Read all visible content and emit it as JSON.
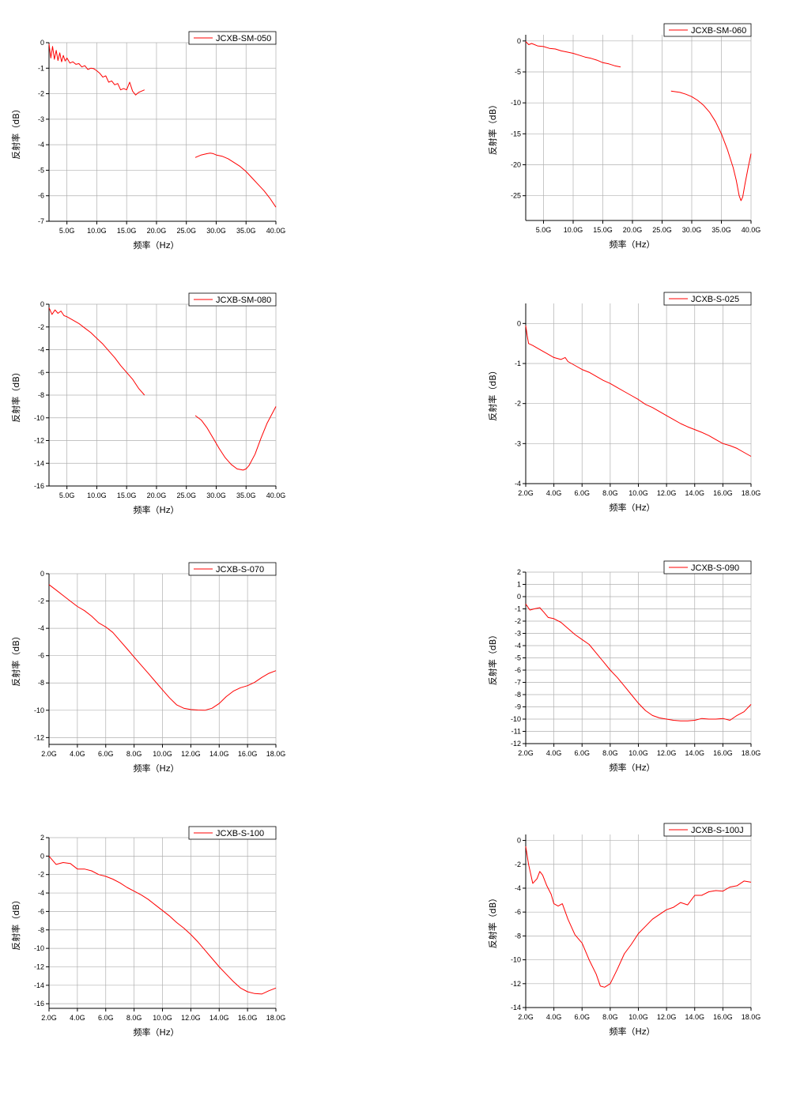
{
  "style": {
    "line_color": "#ff0000",
    "grid_color": "#b0b0b0",
    "axis_color": "#000000"
  },
  "chart_data": [
    {
      "type": "line",
      "legend": "JCXB-SM-050",
      "legend_position": "top-right",
      "xlabel": "频率（Hz）",
      "ylabel": "反射率（dB）",
      "xlim": [
        2,
        40
      ],
      "ylim": [
        -7,
        0
      ],
      "grid": true,
      "xticks": [
        5,
        10,
        15,
        20,
        25,
        30,
        35,
        40
      ],
      "xtick_labels": [
        "5.0G",
        "10.0G",
        "15.0G",
        "20.0G",
        "25.0G",
        "30.0G",
        "35.0G",
        "40.0G"
      ],
      "yticks": [
        0,
        -1,
        -2,
        -3,
        -4,
        -5,
        -6,
        -7
      ],
      "ytick_labels": [
        "0",
        "-1",
        "-2",
        "-3",
        "-4",
        "-5",
        "-6",
        "-7"
      ],
      "series": [
        {
          "x": [
            2.0,
            2.3,
            2.6,
            2.9,
            3.2,
            3.5,
            3.8,
            4.1,
            4.4,
            4.7,
            5.0,
            5.5,
            6.0,
            6.5,
            7.0,
            7.5,
            8.0,
            8.5,
            9.0,
            9.5,
            10.0,
            10.5,
            11.0,
            11.5,
            12.0,
            12.5,
            13.0,
            13.5,
            14.0,
            14.5,
            15.0,
            15.5,
            16.0,
            16.5,
            17.0,
            17.5,
            18.0
          ],
          "y": [
            -0.05,
            -0.6,
            -0.15,
            -0.65,
            -0.3,
            -0.7,
            -0.4,
            -0.75,
            -0.5,
            -0.72,
            -0.6,
            -0.8,
            -0.75,
            -0.85,
            -0.82,
            -0.95,
            -0.9,
            -1.05,
            -1.0,
            -1.02,
            -1.1,
            -1.2,
            -1.35,
            -1.3,
            -1.55,
            -1.5,
            -1.65,
            -1.6,
            -1.85,
            -1.8,
            -1.85,
            -1.55,
            -1.9,
            -2.05,
            -1.95,
            -1.9,
            -1.85
          ]
        },
        {
          "x": [
            26.5,
            27.5,
            28.5,
            29.0,
            29.5,
            30.0,
            31.0,
            32.0,
            33.0,
            34.0,
            35.0,
            36.0,
            37.0,
            38.0,
            39.0,
            40.0
          ],
          "y": [
            -4.5,
            -4.4,
            -4.35,
            -4.33,
            -4.35,
            -4.4,
            -4.45,
            -4.55,
            -4.7,
            -4.85,
            -5.05,
            -5.3,
            -5.55,
            -5.8,
            -6.1,
            -6.45
          ]
        }
      ]
    },
    {
      "type": "line",
      "legend": "JCXB-SM-060",
      "legend_position": "top-right",
      "xlabel": "频率（Hz）",
      "ylabel": "反射率（dB）",
      "xlim": [
        2,
        40
      ],
      "ylim": [
        -29,
        1
      ],
      "grid": true,
      "xticks": [
        5,
        10,
        15,
        20,
        25,
        30,
        35,
        40
      ],
      "xtick_labels": [
        "5.0G",
        "10.0G",
        "15.0G",
        "20.0G",
        "25.0G",
        "30.0G",
        "35.0G",
        "40.0G"
      ],
      "yticks": [
        0,
        -5,
        -10,
        -15,
        -20,
        -25
      ],
      "ytick_labels": [
        "0",
        "-5",
        "-10",
        "-15",
        "-20",
        "-25"
      ],
      "series": [
        {
          "x": [
            2.0,
            2.5,
            3.0,
            4.0,
            5.0,
            6.0,
            7.0,
            8.0,
            9.0,
            10.0,
            11.0,
            12.0,
            13.0,
            14.0,
            15.0,
            16.0,
            17.0,
            18.0
          ],
          "y": [
            -0.1,
            -0.6,
            -0.4,
            -0.8,
            -0.9,
            -1.2,
            -1.3,
            -1.6,
            -1.8,
            -2.0,
            -2.3,
            -2.6,
            -2.8,
            -3.1,
            -3.5,
            -3.7,
            -4.0,
            -4.2
          ]
        },
        {
          "x": [
            26.5,
            28.0,
            29.0,
            30.0,
            31.0,
            32.0,
            33.0,
            34.0,
            35.0,
            36.0,
            37.0,
            37.5,
            38.0,
            38.3,
            38.6,
            39.0,
            39.5,
            40.0
          ],
          "y": [
            -8.1,
            -8.3,
            -8.6,
            -9.0,
            -9.6,
            -10.4,
            -11.5,
            -13.0,
            -15.0,
            -17.5,
            -20.5,
            -22.5,
            -25.0,
            -25.8,
            -25.2,
            -23.0,
            -20.5,
            -18.2
          ]
        }
      ]
    },
    {
      "type": "line",
      "legend": "JCXB-SM-080",
      "legend_position": "top-right",
      "xlabel": "频率（Hz）",
      "ylabel": "反射率（dB）",
      "xlim": [
        2,
        40
      ],
      "ylim": [
        -16,
        0
      ],
      "grid": true,
      "xticks": [
        5,
        10,
        15,
        20,
        25,
        30,
        35,
        40
      ],
      "xtick_labels": [
        "5.0G",
        "10.0G",
        "15.0G",
        "20.0G",
        "25.0G",
        "30.0G",
        "35.0G",
        "40.0G"
      ],
      "yticks": [
        0,
        -2,
        -4,
        -6,
        -8,
        -10,
        -12,
        -14,
        -16
      ],
      "ytick_labels": [
        "0",
        "-2",
        "-4",
        "-6",
        "-8",
        "-10",
        "-12",
        "-14",
        "-16"
      ],
      "series": [
        {
          "x": [
            2.0,
            2.5,
            3.0,
            3.5,
            4.0,
            4.5,
            5.0,
            6.0,
            7.0,
            8.0,
            9.0,
            10.0,
            11.0,
            12.0,
            13.0,
            14.0,
            15.0,
            16.0,
            17.0,
            18.0
          ],
          "y": [
            -0.3,
            -0.9,
            -0.5,
            -0.8,
            -0.6,
            -1.0,
            -1.1,
            -1.4,
            -1.7,
            -2.1,
            -2.5,
            -3.0,
            -3.5,
            -4.1,
            -4.7,
            -5.4,
            -6.0,
            -6.6,
            -7.4,
            -8.0
          ]
        },
        {
          "x": [
            26.5,
            27.5,
            28.5,
            29.5,
            30.5,
            31.5,
            32.5,
            33.5,
            34.5,
            35.0,
            35.5,
            36.5,
            37.5,
            38.5,
            39.5,
            40.0
          ],
          "y": [
            -9.8,
            -10.2,
            -10.9,
            -11.8,
            -12.7,
            -13.5,
            -14.1,
            -14.5,
            -14.6,
            -14.5,
            -14.2,
            -13.2,
            -11.8,
            -10.5,
            -9.5,
            -9.0
          ]
        }
      ]
    },
    {
      "type": "line",
      "legend": "JCXB-S-025",
      "legend_position": "top-right",
      "xlabel": "频率（Hz）",
      "ylabel": "反射率（dB）",
      "xlim": [
        2,
        18
      ],
      "ylim": [
        -4,
        0.5
      ],
      "grid": true,
      "xticks": [
        2,
        4,
        6,
        8,
        10,
        12,
        14,
        16,
        18
      ],
      "xtick_labels": [
        "2.0G",
        "4.0G",
        "6.0G",
        "8.0G",
        "10.0G",
        "12.0G",
        "14.0G",
        "16.0G",
        "18.0G"
      ],
      "yticks": [
        0,
        -1,
        -2,
        -3,
        -4
      ],
      "ytick_labels": [
        "0",
        "-1",
        "-2",
        "-3",
        "-4"
      ],
      "series": [
        {
          "x": [
            2.0,
            2.1,
            2.2,
            2.5,
            3.0,
            3.5,
            4.0,
            4.5,
            4.8,
            5.0,
            5.5,
            6.0,
            6.5,
            7.0,
            7.5,
            8.0,
            8.5,
            9.0,
            9.5,
            10.0,
            10.5,
            11.0,
            11.5,
            12.0,
            12.5,
            13.0,
            13.5,
            14.0,
            14.5,
            15.0,
            15.5,
            16.0,
            16.5,
            17.0,
            17.5,
            18.0
          ],
          "y": [
            -0.05,
            -0.3,
            -0.5,
            -0.55,
            -0.65,
            -0.75,
            -0.85,
            -0.9,
            -0.85,
            -0.95,
            -1.05,
            -1.15,
            -1.22,
            -1.32,
            -1.42,
            -1.5,
            -1.6,
            -1.7,
            -1.8,
            -1.9,
            -2.02,
            -2.1,
            -2.2,
            -2.3,
            -2.4,
            -2.5,
            -2.58,
            -2.65,
            -2.72,
            -2.8,
            -2.9,
            -3.0,
            -3.05,
            -3.12,
            -3.22,
            -3.32
          ]
        }
      ]
    },
    {
      "type": "line",
      "legend": "JCXB-S-070",
      "legend_position": "top-right",
      "xlabel": "频率（Hz）",
      "ylabel": "反射率（dB）",
      "xlim": [
        2,
        18
      ],
      "ylim": [
        -12.5,
        0
      ],
      "grid": true,
      "xticks": [
        2,
        4,
        6,
        8,
        10,
        12,
        14,
        16,
        18
      ],
      "xtick_labels": [
        "2.0G",
        "4.0G",
        "6.0G",
        "8.0G",
        "10.0G",
        "12.0G",
        "14.0G",
        "16.0G",
        "18.0G"
      ],
      "yticks": [
        0,
        -2,
        -4,
        -6,
        -8,
        -10,
        -12
      ],
      "ytick_labels": [
        "0",
        "-2",
        "-4",
        "-6",
        "-8",
        "-10",
        "-12"
      ],
      "series": [
        {
          "x": [
            2.0,
            2.5,
            3.0,
            3.5,
            4.0,
            4.5,
            5.0,
            5.5,
            6.0,
            6.5,
            7.0,
            7.5,
            8.0,
            8.5,
            9.0,
            9.5,
            10.0,
            10.5,
            11.0,
            11.5,
            12.0,
            12.5,
            13.0,
            13.5,
            14.0,
            14.5,
            15.0,
            15.5,
            16.0,
            16.5,
            17.0,
            17.5,
            18.0
          ],
          "y": [
            -0.8,
            -1.2,
            -1.6,
            -2.0,
            -2.4,
            -2.7,
            -3.1,
            -3.6,
            -3.9,
            -4.3,
            -4.9,
            -5.5,
            -6.1,
            -6.7,
            -7.3,
            -7.9,
            -8.5,
            -9.1,
            -9.6,
            -9.85,
            -9.95,
            -9.98,
            -10.0,
            -9.85,
            -9.5,
            -9.0,
            -8.6,
            -8.35,
            -8.2,
            -7.95,
            -7.6,
            -7.3,
            -7.1
          ]
        }
      ]
    },
    {
      "type": "line",
      "legend": "JCXB-S-090",
      "legend_position": "top-right",
      "xlabel": "频率（Hz）",
      "ylabel": "反射率（dB）",
      "xlim": [
        2,
        18
      ],
      "ylim": [
        -12,
        2
      ],
      "grid": true,
      "xticks": [
        2,
        4,
        6,
        8,
        10,
        12,
        14,
        16,
        18
      ],
      "xtick_labels": [
        "2.0G",
        "4.0G",
        "6.0G",
        "8.0G",
        "10.0G",
        "12.0G",
        "14.0G",
        "16.0G",
        "18.0G"
      ],
      "yticks": [
        2,
        1,
        0,
        -1,
        -2,
        -3,
        -4,
        -5,
        -6,
        -7,
        -8,
        -9,
        -10,
        -11,
        -12
      ],
      "ytick_labels": [
        "2",
        "1",
        "0",
        "-1",
        "-2",
        "-3",
        "-4",
        "-5",
        "-6",
        "-7",
        "-8",
        "-9",
        "-10",
        "-11",
        "-12"
      ],
      "series": [
        {
          "x": [
            2.0,
            2.3,
            2.6,
            3.0,
            3.3,
            3.6,
            4.0,
            4.5,
            5.0,
            5.5,
            6.0,
            6.5,
            7.0,
            7.5,
            8.0,
            8.5,
            9.0,
            9.5,
            10.0,
            10.5,
            11.0,
            11.5,
            12.0,
            12.5,
            13.0,
            13.5,
            14.0,
            14.5,
            15.0,
            15.5,
            16.0,
            16.5,
            17.0,
            17.5,
            18.0
          ],
          "y": [
            -0.6,
            -1.1,
            -1.0,
            -0.9,
            -1.3,
            -1.7,
            -1.8,
            -2.1,
            -2.6,
            -3.1,
            -3.5,
            -3.9,
            -4.6,
            -5.3,
            -6.0,
            -6.6,
            -7.3,
            -8.0,
            -8.7,
            -9.3,
            -9.7,
            -9.9,
            -10.0,
            -10.1,
            -10.15,
            -10.15,
            -10.1,
            -9.95,
            -10.0,
            -10.0,
            -9.95,
            -10.1,
            -9.7,
            -9.4,
            -8.8
          ]
        }
      ]
    },
    {
      "type": "line",
      "legend": "JCXB-S-100",
      "legend_position": "top-right",
      "xlabel": "频率（Hz）",
      "ylabel": "反射率（dB）",
      "xlim": [
        2,
        18
      ],
      "ylim": [
        -16.5,
        2
      ],
      "grid": true,
      "xticks": [
        2,
        4,
        6,
        8,
        10,
        12,
        14,
        16,
        18
      ],
      "xtick_labels": [
        "2.0G",
        "4.0G",
        "6.0G",
        "8.0G",
        "10.0G",
        "12.0G",
        "14.0G",
        "16.0G",
        "18.0G"
      ],
      "yticks": [
        2,
        0,
        -2,
        -4,
        -6,
        -8,
        -10,
        -12,
        -14,
        -16
      ],
      "ytick_labels": [
        "2",
        "0",
        "-2",
        "-4",
        "-6",
        "-8",
        "-10",
        "-12",
        "-14",
        "-16"
      ],
      "series": [
        {
          "x": [
            2.0,
            2.5,
            3.0,
            3.5,
            4.0,
            4.5,
            5.0,
            5.5,
            6.0,
            6.5,
            7.0,
            7.5,
            8.0,
            8.5,
            9.0,
            9.5,
            10.0,
            10.5,
            11.0,
            11.5,
            12.0,
            12.5,
            13.0,
            13.5,
            14.0,
            14.5,
            15.0,
            15.5,
            16.0,
            16.5,
            17.0,
            17.5,
            18.0
          ],
          "y": [
            0.0,
            -0.9,
            -0.7,
            -0.8,
            -1.4,
            -1.4,
            -1.6,
            -2.0,
            -2.2,
            -2.5,
            -2.9,
            -3.4,
            -3.8,
            -4.2,
            -4.7,
            -5.3,
            -5.9,
            -6.5,
            -7.2,
            -7.8,
            -8.5,
            -9.3,
            -10.2,
            -11.1,
            -12.0,
            -12.8,
            -13.6,
            -14.3,
            -14.7,
            -14.9,
            -14.95,
            -14.6,
            -14.3
          ]
        }
      ]
    },
    {
      "type": "line",
      "legend": "JCXB-S-100J",
      "legend_position": "top-right",
      "xlabel": "频率（Hz）",
      "ylabel": "反射率（dB）",
      "xlim": [
        2,
        18
      ],
      "ylim": [
        -14,
        0.5
      ],
      "grid": true,
      "xticks": [
        2,
        4,
        6,
        8,
        10,
        12,
        14,
        16,
        18
      ],
      "xtick_labels": [
        "2.0G",
        "4.0G",
        "6.0G",
        "8.0G",
        "10.0G",
        "12.0G",
        "14.0G",
        "16.0G",
        "18.0G"
      ],
      "yticks": [
        0,
        -2,
        -4,
        -6,
        -8,
        -10,
        -12,
        -14
      ],
      "ytick_labels": [
        "0",
        "-2",
        "-4",
        "-6",
        "-8",
        "-10",
        "-12",
        "-14"
      ],
      "series": [
        {
          "x": [
            2.0,
            2.2,
            2.5,
            2.8,
            3.0,
            3.2,
            3.5,
            3.8,
            4.0,
            4.3,
            4.6,
            5.0,
            5.5,
            6.0,
            6.5,
            7.0,
            7.3,
            7.6,
            8.0,
            8.5,
            9.0,
            9.5,
            10.0,
            10.5,
            11.0,
            11.5,
            12.0,
            12.5,
            13.0,
            13.5,
            14.0,
            14.5,
            15.0,
            15.5,
            16.0,
            16.5,
            17.0,
            17.5,
            18.0
          ],
          "y": [
            -0.5,
            -2.0,
            -3.6,
            -3.2,
            -2.6,
            -2.9,
            -3.8,
            -4.5,
            -5.3,
            -5.5,
            -5.3,
            -6.6,
            -7.9,
            -8.6,
            -10.0,
            -11.2,
            -12.2,
            -12.3,
            -12.0,
            -10.8,
            -9.5,
            -8.7,
            -7.8,
            -7.2,
            -6.6,
            -6.2,
            -5.8,
            -5.6,
            -5.2,
            -5.4,
            -4.6,
            -4.6,
            -4.3,
            -4.2,
            -4.25,
            -3.9,
            -3.8,
            -3.4,
            -3.5
          ]
        }
      ]
    }
  ]
}
